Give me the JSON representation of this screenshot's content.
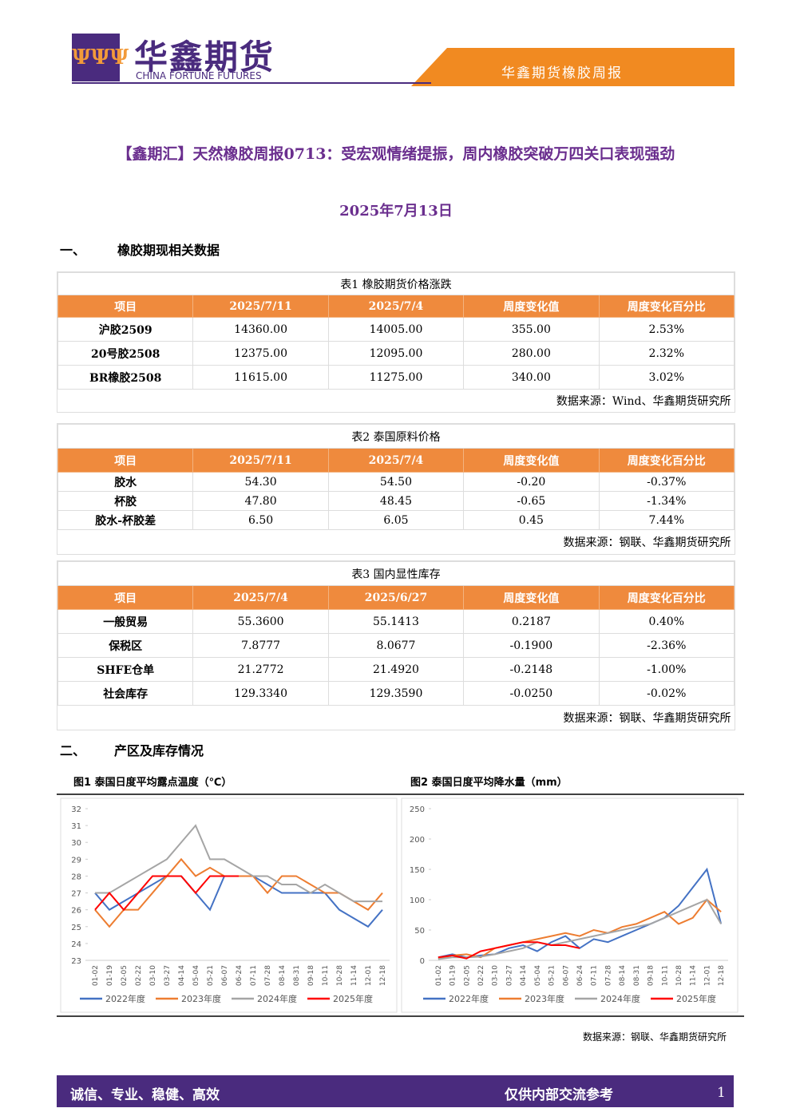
{
  "header": {
    "logo_cn": "华鑫期货",
    "logo_en": "CHINA FORTUNE FUTURES",
    "report_name": "华鑫期货橡胶周报"
  },
  "title": "【鑫期汇】天然橡胶周报0713：受宏观情绪提振，周内橡胶突破万四关口表现强劲",
  "date": "2025年7月13日",
  "sections": [
    {
      "number": "一、",
      "heading": "橡胶期现相关数据"
    },
    {
      "number": "二、",
      "heading": "产区及库存情况"
    }
  ],
  "tables": [
    {
      "caption": "表1  橡胶期货价格涨跌",
      "columns": [
        "项目",
        "2025/7/11",
        "2025/7/4",
        "周度变化值",
        "周度变化百分比"
      ],
      "rows": [
        [
          "沪胶2509",
          "14360.00",
          "14005.00",
          "355.00",
          "2.53%"
        ],
        [
          "20号胶2508",
          "12375.00",
          "12095.00",
          "280.00",
          "2.32%"
        ],
        [
          "BR橡胶2508",
          "11615.00",
          "11275.00",
          "340.00",
          "3.02%"
        ]
      ],
      "source": "数据来源：Wind、华鑫期货研究所"
    },
    {
      "caption": "表2  泰国原料价格",
      "columns": [
        "项目",
        "2025/7/11",
        "2025/7/4",
        "周度变化值",
        "周度变化百分比"
      ],
      "rows": [
        [
          "胶水",
          "54.30",
          "54.50",
          "-0.20",
          "-0.37%"
        ],
        [
          "杯胶",
          "47.80",
          "48.45",
          "-0.65",
          "-1.34%"
        ],
        [
          "胶水-杯胶差",
          "6.50",
          "6.05",
          "0.45",
          "7.44%"
        ]
      ],
      "source": "数据来源：钢联、华鑫期货研究所"
    },
    {
      "caption": "表3  国内显性库存",
      "columns": [
        "项目",
        "2025/7/4",
        "2025/6/27",
        "周度变化值",
        "周度变化百分比"
      ],
      "rows": [
        [
          "一般贸易",
          "55.3600",
          "55.1413",
          "0.2187",
          "0.40%"
        ],
        [
          "保税区",
          "7.8777",
          "8.0677",
          "-0.1900",
          "-2.36%"
        ],
        [
          "SHFE仓单",
          "21.2772",
          "21.4920",
          "-0.2148",
          "-1.00%"
        ],
        [
          "社会库存",
          "129.3340",
          "129.3590",
          "-0.0250",
          "-0.02%"
        ]
      ],
      "source": "数据来源：钢联、华鑫期货研究所"
    }
  ],
  "chart_data": [
    {
      "type": "line",
      "title": "图1  泰国日度平均露点温度（℃）",
      "categories": [
        "01-02",
        "01-19",
        "02-05",
        "02-22",
        "03-10",
        "03-27",
        "04-14",
        "05-04",
        "05-21",
        "06-07",
        "06-24",
        "07-11",
        "07-28",
        "08-14",
        "08-31",
        "09-18",
        "10-11",
        "10-28",
        "11-14",
        "12-01",
        "12-18"
      ],
      "series": [
        {
          "name": "2022年度",
          "color": "#4472c4",
          "values": [
            27,
            26,
            26.5,
            27,
            27.5,
            28,
            28,
            27,
            26,
            28,
            28,
            28,
            27.5,
            27,
            27,
            27,
            27,
            26,
            25.5,
            25,
            26
          ]
        },
        {
          "name": "2023年度",
          "color": "#ed7d31",
          "values": [
            26,
            25,
            26,
            26,
            27,
            28,
            29,
            28,
            28.5,
            28,
            28,
            28,
            27,
            28,
            28,
            27.5,
            27,
            27,
            26.5,
            26,
            27
          ]
        },
        {
          "name": "2024年度",
          "color": "#a5a5a5",
          "values": [
            27,
            27,
            27.5,
            28,
            28.5,
            29,
            30,
            31,
            29,
            29,
            28.5,
            28,
            28,
            27.5,
            27.5,
            27,
            27.5,
            27,
            26.5,
            26.5,
            26.5
          ]
        },
        {
          "name": "2025年度",
          "color": "#ff0000",
          "values": [
            26,
            27,
            26,
            27,
            28,
            28,
            28,
            27,
            28,
            28,
            28,
            null,
            null,
            null,
            null,
            null,
            null,
            null,
            null,
            null,
            null
          ]
        }
      ],
      "ylim": [
        23,
        32
      ],
      "yticks": [
        23,
        24,
        25,
        26,
        27,
        28,
        29,
        30,
        31,
        32
      ]
    },
    {
      "type": "line",
      "title": "图2  泰国日度平均降水量（mm）",
      "categories": [
        "01-02",
        "01-19",
        "02-05",
        "02-22",
        "03-10",
        "03-27",
        "04-14",
        "05-04",
        "05-21",
        "06-07",
        "06-24",
        "07-11",
        "07-28",
        "08-14",
        "08-31",
        "09-18",
        "10-11",
        "10-28",
        "11-14",
        "12-01",
        "12-18"
      ],
      "series": [
        {
          "name": "2022年度",
          "color": "#4472c4",
          "values": [
            5,
            10,
            5,
            8,
            10,
            20,
            25,
            15,
            30,
            40,
            20,
            35,
            30,
            40,
            50,
            60,
            70,
            90,
            120,
            150,
            60
          ]
        },
        {
          "name": "2023年度",
          "color": "#ed7d31",
          "values": [
            3,
            8,
            10,
            5,
            20,
            25,
            30,
            35,
            40,
            45,
            40,
            50,
            45,
            55,
            60,
            70,
            80,
            60,
            70,
            100,
            80
          ]
        },
        {
          "name": "2024年度",
          "color": "#a5a5a5",
          "values": [
            2,
            5,
            5,
            6,
            10,
            15,
            20,
            30,
            25,
            30,
            35,
            40,
            45,
            50,
            55,
            60,
            70,
            80,
            90,
            100,
            60
          ]
        },
        {
          "name": "2025年度",
          "color": "#ff0000",
          "values": [
            5,
            8,
            3,
            15,
            20,
            25,
            30,
            30,
            25,
            25,
            20,
            null,
            null,
            null,
            null,
            null,
            null,
            null,
            null,
            null,
            null
          ]
        }
      ],
      "ylim": [
        0,
        250
      ],
      "yticks": [
        0,
        50,
        100,
        150,
        200,
        250
      ]
    }
  ],
  "figure_source": "数据来源：钢联、华鑫期货研究所",
  "footer": {
    "slogan": "诚信、专业、稳健、高效",
    "notice": "仅供内部交流参考",
    "page": "1"
  }
}
